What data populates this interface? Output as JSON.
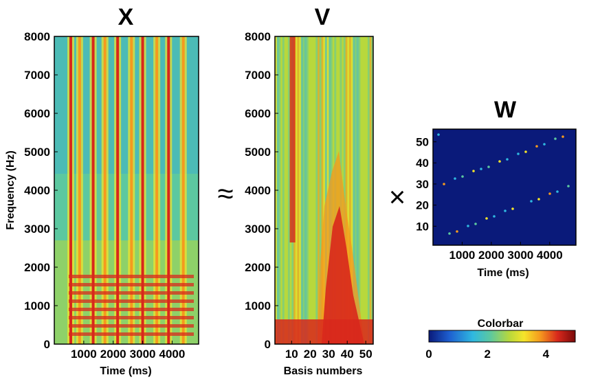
{
  "chart_data": [
    {
      "type": "heatmap",
      "title": "X",
      "xlabel": "Time (ms)",
      "ylabel": "Frequency (Hz)",
      "x_ticks": [
        "1000",
        "2000",
        "3000",
        "4000"
      ],
      "y_ticks": [
        "0",
        "1000",
        "2000",
        "3000",
        "4000",
        "5000",
        "6000",
        "7000",
        "8000"
      ],
      "xlim": [
        0,
        4900
      ],
      "ylim": [
        0,
        8000
      ],
      "vertical_bands_ms": [
        560,
        860,
        1320,
        1720,
        2150,
        2620,
        3000,
        3480,
        3880,
        4380
      ]
    },
    {
      "type": "heatmap",
      "title": "V",
      "xlabel": "Basis numbers",
      "ylabel": "",
      "x_ticks": [
        "10",
        "20",
        "30",
        "40",
        "50"
      ],
      "y_ticks": [
        "0",
        "1000",
        "2000",
        "3000",
        "4000",
        "5000",
        "6000",
        "7000",
        "8000"
      ],
      "xlim": [
        1,
        54
      ],
      "ylim": [
        0,
        8000
      ]
    },
    {
      "type": "heatmap",
      "title": "W",
      "xlabel": "Time (ms)",
      "ylabel": "",
      "x_ticks": [
        "1000",
        "2000",
        "3000",
        "4000"
      ],
      "y_ticks": [
        "10",
        "20",
        "30",
        "40",
        "50"
      ],
      "xlim": [
        0,
        4900
      ],
      "ylim": [
        1,
        56
      ]
    }
  ],
  "operators": {
    "approx": "≈",
    "times": "×"
  },
  "colorbar": {
    "title": "Colorbar",
    "ticks": [
      "0",
      "2",
      "4"
    ],
    "range": [
      0,
      5
    ],
    "colormap": [
      "#0a1a7a",
      "#1e5fd0",
      "#2fb8e0",
      "#5cc8a0",
      "#b8d83c",
      "#f5e52a",
      "#f59a1e",
      "#d8281c",
      "#7a0a0a"
    ]
  }
}
